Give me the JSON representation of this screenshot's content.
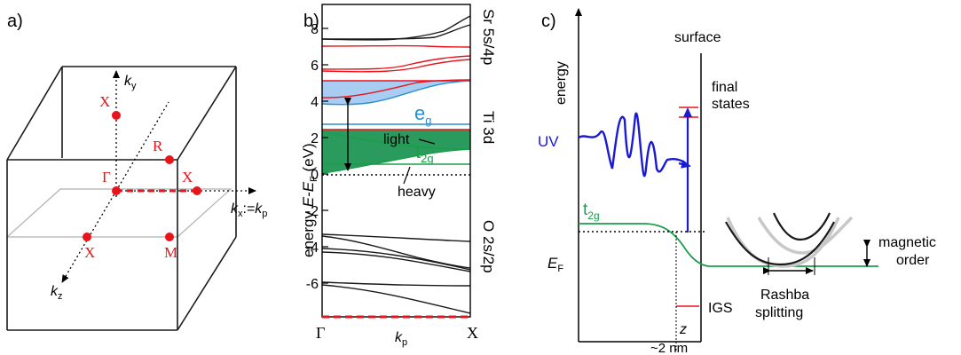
{
  "panel_a": {
    "label": "a)",
    "axis_ky": "k",
    "axis_ky_sub": "y",
    "axis_kx": "k",
    "axis_kx_sub": "x",
    "axis_kx_eq": ":=",
    "axis_kp": "k",
    "axis_kp_sub": "p",
    "axis_kz": "k",
    "axis_kz_sub": "z",
    "points": {
      "X_top": "X",
      "R": "R",
      "Gamma": "Γ",
      "X_right": "X",
      "X_front": "X",
      "M": "M"
    }
  },
  "panel_b": {
    "label": "b)",
    "ylabel_prefix": "energy ",
    "ylabel_italic": "E-E",
    "ylabel_sub": "F",
    "ylabel_unit": " (eV)",
    "yticks": [
      "8",
      "6",
      "4",
      "2",
      "0",
      "-2",
      "-4",
      "-6"
    ],
    "right_labels": {
      "sr": "Sr 5s/4p",
      "ti": "Ti 3d",
      "o": "O 2s/2p"
    },
    "eg": "e",
    "eg_sub": "g",
    "t2g": "t",
    "t2g_sub": "2g",
    "light": "light",
    "heavy": "heavy",
    "x_gamma": "Γ",
    "x_X": "X",
    "x_kp": "k",
    "x_kp_sub": "p",
    "colors": {
      "eg": "#2b8fcf",
      "t2g": "#1a9e4a",
      "bands_red": "#e8141b"
    }
  },
  "panel_c": {
    "label": "c)",
    "energy": "energy",
    "surface": "surface",
    "final_states_1": "final",
    "final_states_2": "states",
    "uv": "UV",
    "t2g": "t",
    "t2g_sub": "2g",
    "ef": "E",
    "ef_sub": "F",
    "igs": "IGS",
    "z": "z",
    "nm": "~2 nm",
    "rashba_1": "Rashba",
    "rashba_2": "splitting",
    "magnetic_1": "magnetic",
    "magnetic_2": "order",
    "colors": {
      "uv": "#1a1ad6",
      "t2g": "#1a9e4a",
      "red": "#e8141b"
    }
  }
}
